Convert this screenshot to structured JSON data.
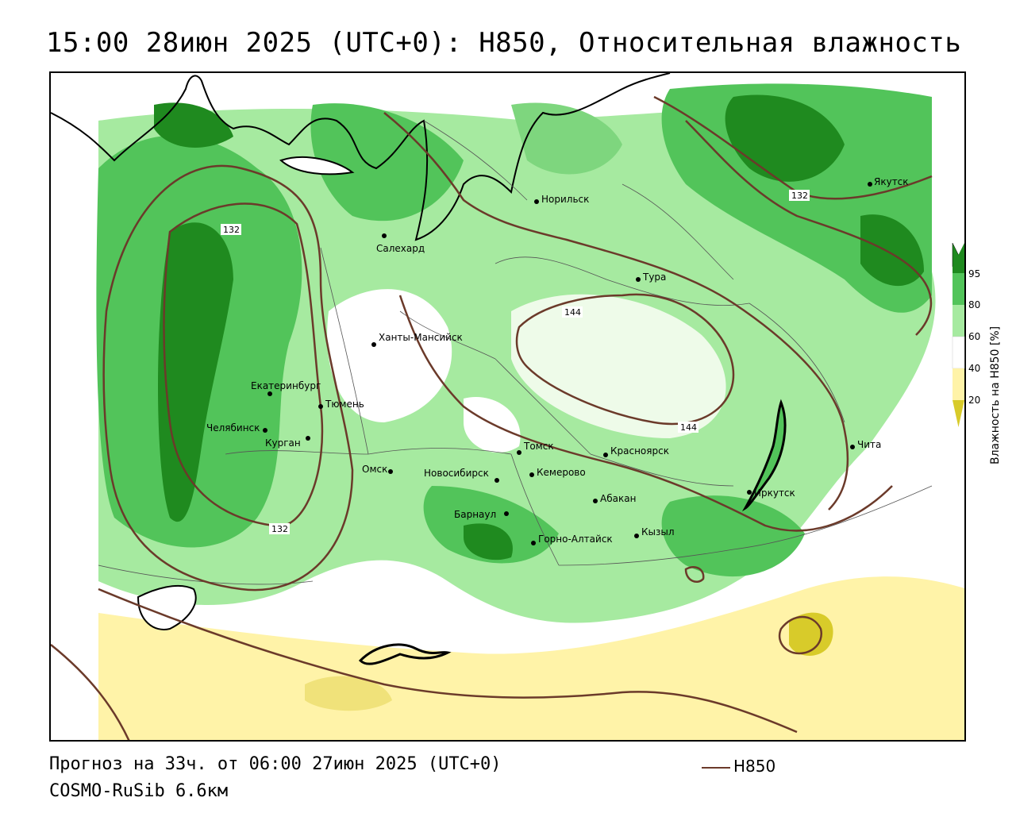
{
  "header": {
    "title": "15:00 28июн 2025 (UTC+0): H850, Относительная влажность"
  },
  "footer": {
    "forecast": "Прогноз на 33ч. от 06:00 27июн 2025 (UTC+0)",
    "model": "COSMO-RuSib 6.6км",
    "line_legend": "H850"
  },
  "colorbar": {
    "label": "Влажность на H850 [%]",
    "ticks": [
      "95",
      "80",
      "60",
      "40",
      "20"
    ],
    "colors": {
      "very_high": "#1f8a1f",
      "high": "#52c45a",
      "medium": "#a6eaa0",
      "low": "#ffffff",
      "dry": "#fff3a8",
      "very_dry": "#d8cb2a"
    }
  },
  "contours": {
    "color": "#6b3a2a",
    "labels": [
      "132",
      "132",
      "132",
      "144",
      "144"
    ]
  },
  "cities": [
    {
      "name": "Норильск"
    },
    {
      "name": "Якутск"
    },
    {
      "name": "Салехард"
    },
    {
      "name": "Тура"
    },
    {
      "name": "Ханты-Мансийск"
    },
    {
      "name": "Екатеринбург"
    },
    {
      "name": "Тюмень"
    },
    {
      "name": "Челябинск"
    },
    {
      "name": "Курган"
    },
    {
      "name": "Омск"
    },
    {
      "name": "Новосибирск"
    },
    {
      "name": "Томск"
    },
    {
      "name": "Кемерово"
    },
    {
      "name": "Красноярск"
    },
    {
      "name": "Барнаул"
    },
    {
      "name": "Абакан"
    },
    {
      "name": "Горно-Алтайск"
    },
    {
      "name": "Кызыл"
    },
    {
      "name": "Иркутск"
    },
    {
      "name": "Чита"
    }
  ]
}
